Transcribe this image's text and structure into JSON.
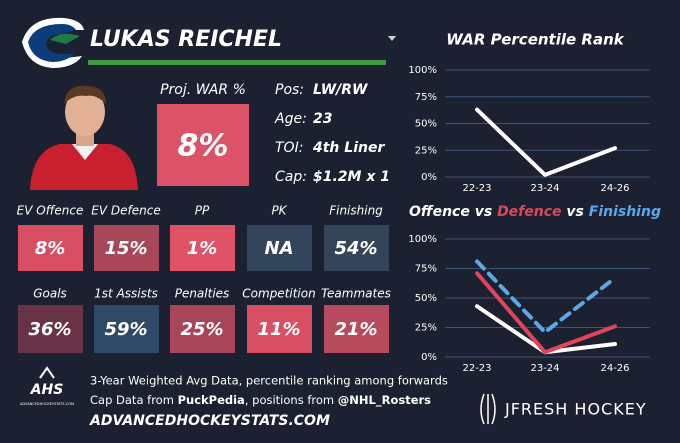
{
  "player": {
    "name": "LUKAS REICHEL",
    "proj_war_label": "Proj. WAR %",
    "proj_war": "8%",
    "proj_war_color": "#dc5266",
    "info": [
      {
        "label": "Pos:",
        "value": "LW/RW"
      },
      {
        "label": "Age:",
        "value": "23"
      },
      {
        "label": "TOI:",
        "value": "4th Liner"
      },
      {
        "label": "Cap:",
        "value": "$1.2M x 1"
      }
    ]
  },
  "stats": [
    {
      "label": "EV Offence",
      "value": "8%",
      "color": "#d84f63"
    },
    {
      "label": "EV Defence",
      "value": "15%",
      "color": "#a8465a"
    },
    {
      "label": "PP",
      "value": "1%",
      "color": "#e05367"
    },
    {
      "label": "PK",
      "value": "NA",
      "color": "#33455a"
    },
    {
      "label": "Finishing",
      "value": "54%",
      "color": "#34455a"
    },
    {
      "label": "Goals",
      "value": "36%",
      "color": "#6a3247"
    },
    {
      "label": "1st Assists",
      "value": "59%",
      "color": "#2f4a67"
    },
    {
      "label": "Penalties",
      "value": "25%",
      "color": "#a84559"
    },
    {
      "label": "Competition",
      "value": "11%",
      "color": "#d94f63"
    },
    {
      "label": "Teammates",
      "value": "21%",
      "color": "#b84a5d"
    }
  ],
  "footer": {
    "note": "3-Year Weighted Avg Data, percentile ranking among forwards",
    "cap_prefix": "Cap Data from ",
    "cap_source": "PuckPedia",
    "cap_mid": ", positions from ",
    "pos_source": "@NHL_Rosters",
    "site": "ADVANCEDHOCKEYSTATS.COM",
    "logo": "AHS",
    "logo_sub": "ADVANCEDHOCKEYSTATS.COM",
    "brand": "JFRESH HOCKEY"
  },
  "chart_data": [
    {
      "type": "line",
      "title": "WAR Percentile Rank",
      "categories": [
        "22-23",
        "23-24",
        "24-26"
      ],
      "values": [
        63,
        2,
        27
      ],
      "color": "#ffffff",
      "ylim": [
        0,
        100
      ],
      "yticks": [
        {
          "value": 0,
          "label": "0%"
        },
        {
          "value": 25,
          "label": "25%"
        },
        {
          "value": 50,
          "label": "50%"
        },
        {
          "value": 75,
          "label": "75%"
        },
        {
          "value": 100,
          "label": "100%"
        }
      ],
      "grid": true
    },
    {
      "type": "line",
      "separator": "vs",
      "categories": [
        "22-23",
        "23-24",
        "24-26"
      ],
      "series": [
        {
          "name": "Offence",
          "color": "#ffffff",
          "values": [
            43,
            4,
            11
          ]
        },
        {
          "name": "Defence",
          "color": "#e0455a",
          "values": [
            71,
            4,
            26
          ]
        },
        {
          "name": "Finishing",
          "color": "#5aa8e8",
          "values": [
            81,
            21,
            67
          ],
          "dashed": true
        }
      ],
      "ylim": [
        0,
        100
      ],
      "yticks": [
        {
          "value": 0,
          "label": "0%"
        },
        {
          "value": 25,
          "label": "25%"
        },
        {
          "value": 50,
          "label": "50%"
        },
        {
          "value": 75,
          "label": "75%"
        },
        {
          "value": 100,
          "label": "100%"
        }
      ],
      "grid": true
    }
  ]
}
